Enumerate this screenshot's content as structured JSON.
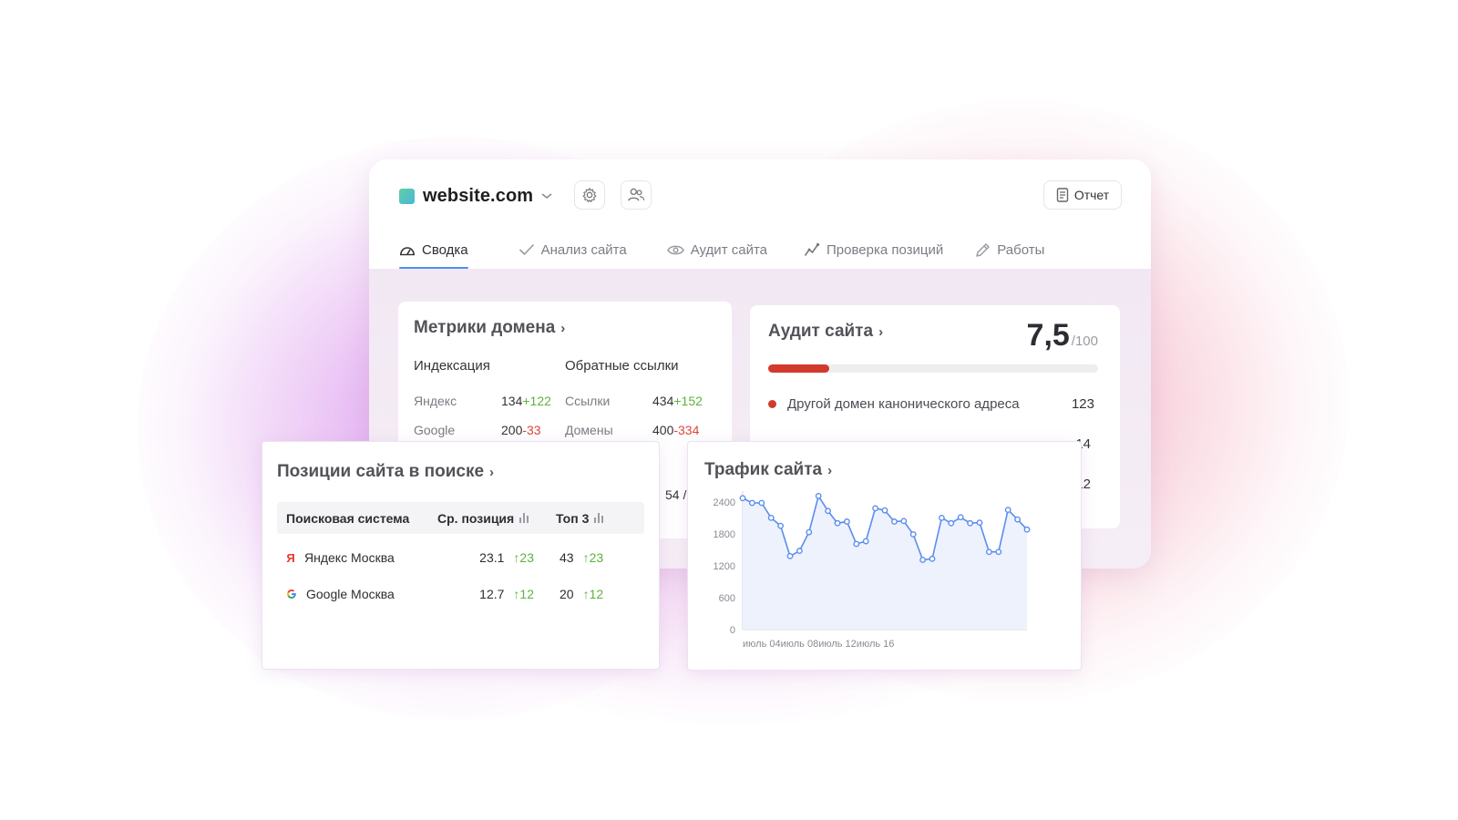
{
  "header": {
    "site_name": "website.com",
    "report_label": "Отчет",
    "icons": [
      "settings-icon",
      "users-icon",
      "report-icon"
    ]
  },
  "tabs": [
    {
      "label": "Сводка",
      "icon": "dashboard-icon",
      "active": true
    },
    {
      "label": "Анализ сайта",
      "icon": "check-icon",
      "active": false
    },
    {
      "label": "Аудит сайта",
      "icon": "eye-icon",
      "active": false
    },
    {
      "label": "Проверка позиций",
      "icon": "chart-line-icon",
      "active": false
    },
    {
      "label": "Работы",
      "icon": "pencil-icon",
      "active": false
    }
  ],
  "domain_metrics": {
    "title": "Метрики домена",
    "indexing": {
      "heading": "Индексация",
      "rows": [
        {
          "label": "Яндекс",
          "value": "134",
          "delta": "+122",
          "trend": "up"
        },
        {
          "label": "Google",
          "value": "200",
          "delta": "-33",
          "trend": "down"
        }
      ]
    },
    "backlinks": {
      "heading": "Обратные ссылки",
      "rows": [
        {
          "label": "Ссылки",
          "value": "434",
          "delta": "+152",
          "trend": "up"
        },
        {
          "label": "Домены",
          "value": "400",
          "delta": "-334",
          "trend": "down"
        }
      ]
    },
    "partial_value": "54 /"
  },
  "site_audit": {
    "title": "Аудит сайта",
    "score": "7,5",
    "score_max": "/100",
    "score_fraction": 0.075,
    "issues": [
      {
        "label": "Другой домен канонического адреса",
        "count": "123"
      }
    ],
    "partial_counts": [
      "14",
      "12"
    ]
  },
  "search_positions": {
    "title": "Позиции сайта в поиске",
    "columns": [
      "Поисковая система",
      "Ср. позиция",
      "Топ 3"
    ],
    "rows": [
      {
        "engine": "Яндекс Москва",
        "icon": "yandex-icon",
        "avg": "23.1",
        "avg_delta": "23",
        "top3": "43",
        "top3_delta": "23"
      },
      {
        "engine": "Google Москва",
        "icon": "google-icon",
        "avg": "12.7",
        "avg_delta": "12",
        "top3": "20",
        "top3_delta": "12"
      }
    ]
  },
  "traffic": {
    "title": "Трафик сайта"
  },
  "chart_data": {
    "type": "area",
    "title": "Трафик сайта",
    "yticks": [
      "0",
      "600",
      "1200",
      "1800",
      "2400"
    ],
    "xticks": [
      "июль 04",
      "июль 08",
      "июль 12",
      "июль 16"
    ],
    "xtick_index": [
      2,
      6,
      10,
      14
    ],
    "ylim": [
      0,
      2500
    ],
    "values": [
      2470,
      2380,
      2380,
      2100,
      1950,
      1380,
      1480,
      1830,
      2510,
      2230,
      2000,
      2030,
      1610,
      1660,
      2280,
      2240,
      2030,
      2040,
      1790,
      1310,
      1330,
      2100,
      2000,
      2110,
      2000,
      2010,
      1460,
      1460,
      2250,
      2070,
      1880
    ],
    "color": "#5b8def",
    "fill": "#eef2fd"
  },
  "colors": {
    "accent": "#4f8ff2",
    "positive": "#5bb33b",
    "negative": "#e0453a",
    "audit_bar": "#d13a2c"
  }
}
